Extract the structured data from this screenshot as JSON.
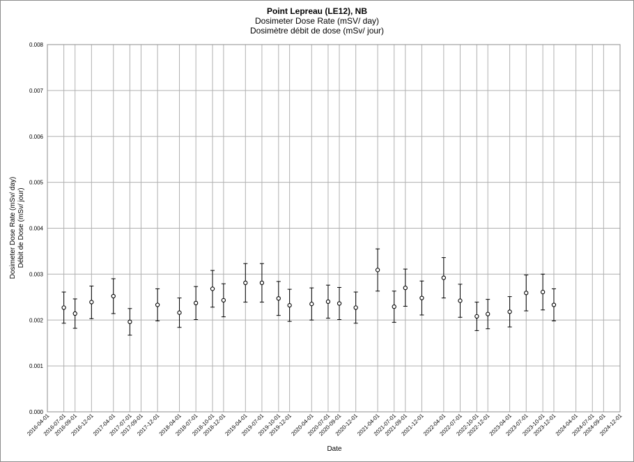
{
  "chart_data": {
    "type": "scatter",
    "title": "Point Lepreau (LE12), NB",
    "subtitle": "Dosimeter Dose Rate (mSV/ day)",
    "subtitle2": "Dosimètre débit de dose (mSv/ jour)",
    "xlabel": "Date",
    "ylabel": "Dosimeter Dose Rate (mSv/ day)",
    "ylabel2": "Débit de Dose (mSv/ jour)",
    "ylim": [
      0,
      0.008
    ],
    "yticks": [
      "0.000",
      "0.001",
      "0.002",
      "0.003",
      "0.004",
      "0.005",
      "0.006",
      "0.007",
      "0.008"
    ],
    "xlim": [
      "2016-04-01",
      "2024-12-01"
    ],
    "xticks": [
      "2016-04-01",
      "2016-07-01",
      "2016-09-01",
      "2016-12-01",
      "2017-04-01",
      "2017-07-01",
      "2017-09-01",
      "2017-12-01",
      "2018-04-01",
      "2018-07-01",
      "2018-10-01",
      "2018-12-01",
      "2019-04-01",
      "2019-07-01",
      "2019-10-01",
      "2019-12-01",
      "2020-04-01",
      "2020-07-01",
      "2020-09-01",
      "2020-12-01",
      "2021-04-01",
      "2021-07-01",
      "2021-09-01",
      "2021-12-01",
      "2022-04-01",
      "2022-07-01",
      "2022-10-01",
      "2022-12-01",
      "2023-04-01",
      "2023-07-01",
      "2023-10-01",
      "2023-12-01",
      "2024-04-01",
      "2024-07-01",
      "2024-09-01",
      "2024-12-01"
    ],
    "grid": true,
    "series": [
      {
        "points": [
          {
            "x": "2016-07-01",
            "y": 0.00227,
            "low": 0.00193,
            "high": 0.00261
          },
          {
            "x": "2016-09-01",
            "y": 0.00214,
            "low": 0.00182,
            "high": 0.00246
          },
          {
            "x": "2016-12-01",
            "y": 0.00239,
            "low": 0.00203,
            "high": 0.00274
          },
          {
            "x": "2017-04-01",
            "y": 0.00252,
            "low": 0.00214,
            "high": 0.0029
          },
          {
            "x": "2017-07-01",
            "y": 0.00196,
            "low": 0.00167,
            "high": 0.00225
          },
          {
            "x": "2017-12-01",
            "y": 0.00233,
            "low": 0.00198,
            "high": 0.00268
          },
          {
            "x": "2018-04-01",
            "y": 0.00216,
            "low": 0.00184,
            "high": 0.00248
          },
          {
            "x": "2018-07-01",
            "y": 0.00237,
            "low": 0.00201,
            "high": 0.00273
          },
          {
            "x": "2018-10-01",
            "y": 0.00268,
            "low": 0.00228,
            "high": 0.00308
          },
          {
            "x": "2018-12-01",
            "y": 0.00243,
            "low": 0.00207,
            "high": 0.00279
          },
          {
            "x": "2019-04-01",
            "y": 0.00281,
            "low": 0.00239,
            "high": 0.00323
          },
          {
            "x": "2019-07-01",
            "y": 0.00281,
            "low": 0.00239,
            "high": 0.00323
          },
          {
            "x": "2019-10-01",
            "y": 0.00247,
            "low": 0.0021,
            "high": 0.00284
          },
          {
            "x": "2019-12-01",
            "y": 0.00232,
            "low": 0.00197,
            "high": 0.00267
          },
          {
            "x": "2020-04-01",
            "y": 0.00235,
            "low": 0.002,
            "high": 0.0027
          },
          {
            "x": "2020-07-01",
            "y": 0.0024,
            "low": 0.00204,
            "high": 0.00276
          },
          {
            "x": "2020-09-01",
            "y": 0.00236,
            "low": 0.00201,
            "high": 0.00271
          },
          {
            "x": "2020-12-01",
            "y": 0.00227,
            "low": 0.00193,
            "high": 0.00261
          },
          {
            "x": "2021-04-01",
            "y": 0.00309,
            "low": 0.00263,
            "high": 0.00355
          },
          {
            "x": "2021-07-01",
            "y": 0.00229,
            "low": 0.00195,
            "high": 0.00263
          },
          {
            "x": "2021-09-01",
            "y": 0.0027,
            "low": 0.0023,
            "high": 0.00311
          },
          {
            "x": "2021-12-01",
            "y": 0.00248,
            "low": 0.00211,
            "high": 0.00285
          },
          {
            "x": "2022-04-01",
            "y": 0.00292,
            "low": 0.00248,
            "high": 0.00336
          },
          {
            "x": "2022-07-01",
            "y": 0.00242,
            "low": 0.00206,
            "high": 0.00278
          },
          {
            "x": "2022-10-01",
            "y": 0.00208,
            "low": 0.00177,
            "high": 0.00239
          },
          {
            "x": "2022-12-01",
            "y": 0.00213,
            "low": 0.00181,
            "high": 0.00245
          },
          {
            "x": "2023-04-01",
            "y": 0.00218,
            "low": 0.00185,
            "high": 0.00251
          },
          {
            "x": "2023-07-01",
            "y": 0.00259,
            "low": 0.0022,
            "high": 0.00298
          },
          {
            "x": "2023-10-01",
            "y": 0.00261,
            "low": 0.00222,
            "high": 0.003
          },
          {
            "x": "2023-12-01",
            "y": 0.00233,
            "low": 0.00198,
            "high": 0.00268
          }
        ]
      }
    ]
  }
}
